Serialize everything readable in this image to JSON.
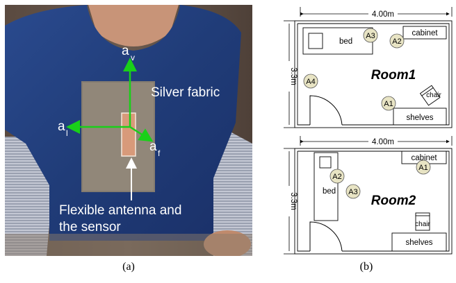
{
  "panel_a": {
    "caption": "(a)",
    "axis_v": "a",
    "axis_v_sub": "v",
    "axis_l": "a",
    "axis_l_sub": "l",
    "axis_f": "a",
    "axis_f_sub": "f",
    "fabric_label": "Silver fabric",
    "antenna_label_line1": "Flexible antenna and",
    "antenna_label_line2": "the sensor",
    "colors": {
      "shirt": "#203c78",
      "arrow_green": "#19d019",
      "arrow_white": "#ffffff"
    }
  },
  "panel_b": {
    "caption": "(b)",
    "room1": {
      "title": "Room1",
      "width_label": "4.00m",
      "height_label": "3.3m",
      "furniture": {
        "bed": "bed",
        "cabinet": "cabinet",
        "chair": "chair",
        "shelves": "shelves"
      },
      "anchors": [
        "A3",
        "A2",
        "A4",
        "A1"
      ]
    },
    "room2": {
      "title": "Room2",
      "width_label": "4.00m",
      "height_label": "3.3m",
      "furniture": {
        "bed": "bed",
        "cabinet": "cabinet",
        "chair": "chair",
        "shelves": "shelves"
      },
      "anchors": [
        "A2",
        "A3",
        "A1"
      ]
    },
    "colors": {
      "anchor_fill": "#e8e4c4"
    }
  }
}
